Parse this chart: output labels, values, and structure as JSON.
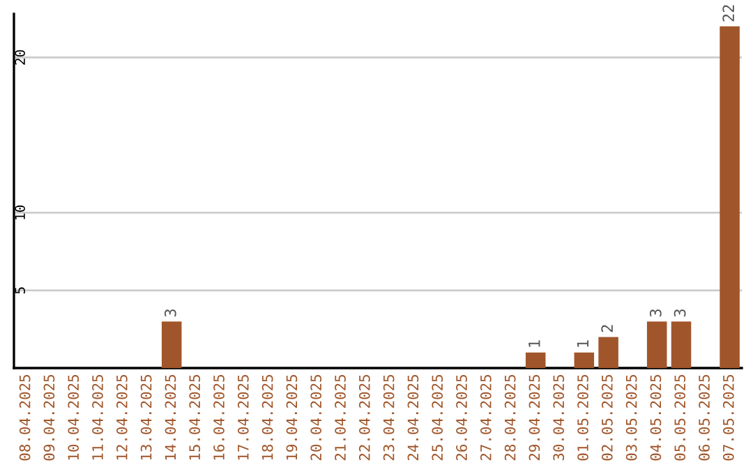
{
  "chart_data": {
    "type": "bar",
    "categories": [
      "08.04.2025",
      "09.04.2025",
      "10.04.2025",
      "11.04.2025",
      "12.04.2025",
      "13.04.2025",
      "14.04.2025",
      "15.04.2025",
      "16.04.2025",
      "17.04.2025",
      "18.04.2025",
      "19.04.2025",
      "20.04.2025",
      "21.04.2025",
      "22.04.2025",
      "23.04.2025",
      "24.04.2025",
      "25.04.2025",
      "26.04.2025",
      "27.04.2025",
      "28.04.2025",
      "29.04.2025",
      "30.04.2025",
      "01.05.2025",
      "02.05.2025",
      "03.05.2025",
      "04.05.2025",
      "05.05.2025",
      "06.05.2025",
      "07.05.2025"
    ],
    "values": [
      0,
      0,
      0,
      0,
      0,
      0,
      3,
      0,
      0,
      0,
      0,
      0,
      0,
      0,
      0,
      0,
      0,
      0,
      0,
      0,
      0,
      1,
      0,
      1,
      2,
      0,
      3,
      3,
      0,
      22
    ],
    "value_labels": [
      null,
      null,
      null,
      null,
      null,
      null,
      "3",
      null,
      null,
      null,
      null,
      null,
      null,
      null,
      null,
      null,
      null,
      null,
      null,
      null,
      null,
      "1",
      null,
      "1",
      "2",
      null,
      "3",
      "3",
      null,
      "22"
    ],
    "color": "#a0562a",
    "ylim": [
      0,
      22.8
    ],
    "yticks": [
      5,
      10,
      20
    ],
    "grid": "y"
  }
}
